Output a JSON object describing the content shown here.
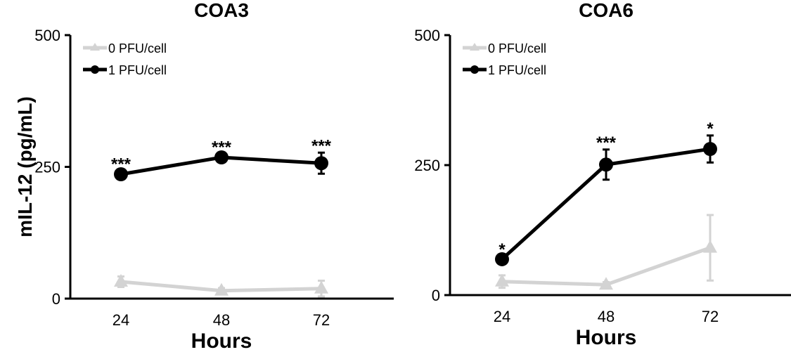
{
  "chart_data": [
    {
      "type": "line",
      "title": "COA3",
      "xlabel": "Hours",
      "ylabel": "mIL-12 (pg/mL)",
      "x": [
        24,
        48,
        72
      ],
      "x_tick_labels": [
        "24",
        "48",
        "72"
      ],
      "ylim": [
        0,
        500
      ],
      "y_ticks": [
        0,
        250,
        500
      ],
      "y_tick_labels": [
        "0",
        "250",
        "500"
      ],
      "grid": false,
      "legend_placement": "top-left",
      "series": [
        {
          "name": "0  PFU/cell",
          "color": "#d3d3d3",
          "marker": "triangle",
          "values": [
            32,
            15,
            19
          ],
          "errors": [
            10,
            5,
            15
          ]
        },
        {
          "name": "1 PFU/cell",
          "color": "#000000",
          "marker": "circle",
          "values": [
            236,
            268,
            257
          ],
          "errors": [
            6,
            6,
            20
          ]
        }
      ],
      "annotations": [
        "***",
        "***",
        "***"
      ]
    },
    {
      "type": "line",
      "title": "COA6",
      "xlabel": "Hours",
      "ylabel": "",
      "x": [
        24,
        48,
        72
      ],
      "x_tick_labels": [
        "24",
        "48",
        "72"
      ],
      "ylim": [
        0,
        500
      ],
      "y_ticks": [
        0,
        250,
        500
      ],
      "y_tick_labels": [
        "0",
        "250",
        "500"
      ],
      "grid": false,
      "legend_placement": "top-left",
      "series": [
        {
          "name": "0  PFU/cell",
          "color": "#d3d3d3",
          "marker": "triangle",
          "values": [
            26,
            20,
            91
          ],
          "errors": [
            12,
            5,
            63
          ]
        },
        {
          "name": "1 PFU/cell",
          "color": "#000000",
          "marker": "circle",
          "values": [
            69,
            251,
            281
          ],
          "errors": [
            5,
            29,
            26
          ]
        }
      ],
      "annotations": [
        "*",
        "***",
        "*"
      ]
    }
  ]
}
